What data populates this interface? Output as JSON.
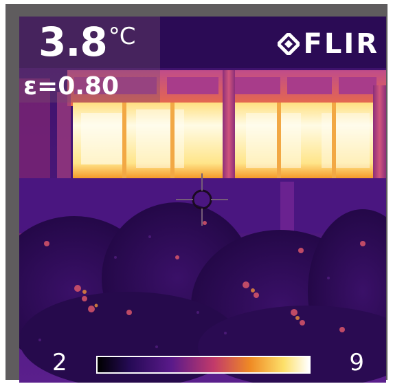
{
  "readout": {
    "temperature_value": "3.8",
    "temperature_unit": "°C",
    "emissivity": "ε=0.80"
  },
  "brand": {
    "logo_text": "FLIR"
  },
  "scale": {
    "min_label": "2",
    "max_label": "9",
    "palette": [
      "#000000",
      "#250a55",
      "#5a1a8a",
      "#c23a6a",
      "#ef8a24",
      "#fde06a",
      "#ffffff"
    ]
  },
  "crosshair": {
    "icon": "spot-meter-icon"
  },
  "colors": {
    "frame": "#5f5c5e",
    "cold": "#2d0a52",
    "hot": "#fff2b0"
  }
}
